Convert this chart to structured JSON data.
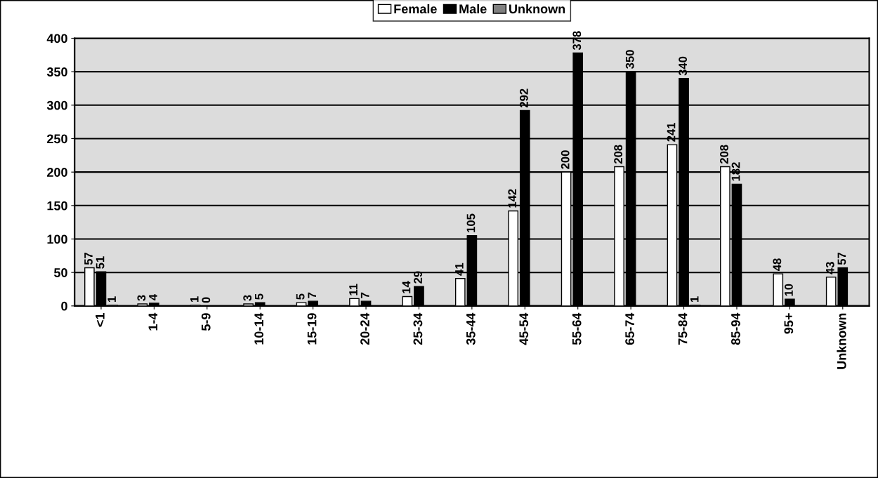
{
  "chart_data": {
    "type": "bar",
    "categories": [
      "<1",
      "1-4",
      "5-9",
      "10-14",
      "15-19",
      "20-24",
      "25-34",
      "35-44",
      "45-54",
      "55-64",
      "65-74",
      "75-84",
      "85-94",
      "95+",
      "Unknown"
    ],
    "series": [
      {
        "name": "Female",
        "color": "#ffffff",
        "values": [
          57,
          3,
          1,
          3,
          5,
          11,
          14,
          41,
          142,
          200,
          208,
          241,
          208,
          48,
          43
        ]
      },
      {
        "name": "Male",
        "color": "#000000",
        "values": [
          51,
          4,
          0,
          5,
          7,
          7,
          29,
          105,
          292,
          378,
          350,
          340,
          182,
          10,
          57
        ]
      },
      {
        "name": "Unknown",
        "color": "#808080",
        "values": [
          1,
          null,
          null,
          null,
          null,
          null,
          null,
          null,
          null,
          null,
          null,
          1,
          null,
          null,
          null
        ]
      }
    ],
    "ylim": [
      0,
      400
    ],
    "yticks": [
      0,
      50,
      100,
      150,
      200,
      250,
      300,
      350,
      400
    ],
    "grid": "y",
    "legend": "top",
    "data_labels": true
  }
}
